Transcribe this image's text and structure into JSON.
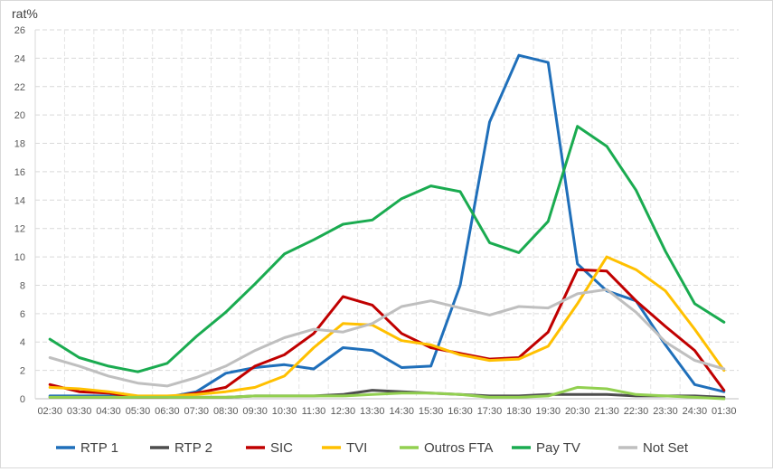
{
  "chart_data": {
    "type": "line",
    "ylabel": "rat%",
    "xlabel": "",
    "ylim": [
      0,
      26
    ],
    "yticks": [
      "0",
      "2",
      "4",
      "6",
      "8",
      "10",
      "12",
      "14",
      "16",
      "18",
      "20",
      "22",
      "24",
      "26"
    ],
    "grid": "horizontal dashed",
    "legend_position": "bottom",
    "categories": [
      "02:30",
      "03:30",
      "04:30",
      "05:30",
      "06:30",
      "07:30",
      "08:30",
      "09:30",
      "10:30",
      "11:30",
      "12:30",
      "13:30",
      "14:30",
      "15:30",
      "16:30",
      "17:30",
      "18:30",
      "19:30",
      "20:30",
      "21:30",
      "22:30",
      "23:30",
      "24:30",
      "01:30"
    ],
    "series": [
      {
        "name": "RTP 1",
        "color": "#1f6fba",
        "values": [
          0.2,
          0.2,
          0.2,
          0.1,
          0.1,
          0.5,
          1.8,
          2.2,
          2.4,
          2.1,
          3.6,
          3.4,
          2.2,
          2.3,
          8.0,
          19.5,
          24.2,
          23.7,
          9.5,
          7.6,
          6.9,
          3.8,
          1.0,
          0.5
        ]
      },
      {
        "name": "RTP 2",
        "color": "#4d4d4d",
        "values": [
          0.1,
          0.1,
          0.1,
          0.1,
          0.1,
          0.1,
          0.1,
          0.2,
          0.2,
          0.2,
          0.3,
          0.6,
          0.5,
          0.4,
          0.3,
          0.2,
          0.2,
          0.3,
          0.3,
          0.3,
          0.2,
          0.2,
          0.2,
          0.1
        ]
      },
      {
        "name": "SIC",
        "color": "#c00000",
        "values": [
          1.0,
          0.5,
          0.4,
          0.1,
          0.1,
          0.4,
          0.8,
          2.3,
          3.1,
          4.6,
          7.2,
          6.6,
          4.6,
          3.6,
          3.2,
          2.8,
          2.9,
          4.7,
          9.1,
          9.0,
          6.9,
          5.1,
          3.4,
          0.6
        ]
      },
      {
        "name": "TVI",
        "color": "#ffc000",
        "values": [
          0.8,
          0.7,
          0.5,
          0.2,
          0.2,
          0.3,
          0.5,
          0.8,
          1.6,
          3.6,
          5.3,
          5.2,
          4.1,
          3.8,
          3.1,
          2.7,
          2.8,
          3.7,
          6.7,
          10.0,
          9.1,
          7.6,
          4.9,
          2.0
        ]
      },
      {
        "name": "Outros FTA",
        "color": "#92d050",
        "values": [
          0.1,
          0.1,
          0.1,
          0.1,
          0.1,
          0.1,
          0.1,
          0.2,
          0.2,
          0.2,
          0.2,
          0.3,
          0.4,
          0.4,
          0.3,
          0.1,
          0.1,
          0.2,
          0.8,
          0.7,
          0.3,
          0.2,
          0.1,
          0.0
        ]
      },
      {
        "name": "Pay TV",
        "color": "#1aab50",
        "values": [
          4.2,
          2.9,
          2.3,
          1.9,
          2.5,
          4.4,
          6.1,
          8.1,
          10.2,
          11.2,
          12.3,
          12.6,
          14.1,
          15.0,
          14.6,
          11.0,
          10.3,
          12.5,
          19.2,
          17.8,
          14.7,
          10.4,
          6.7,
          5.4
        ]
      },
      {
        "name": "Not Set",
        "color": "#bfbfbf",
        "values": [
          2.9,
          2.3,
          1.6,
          1.1,
          0.9,
          1.5,
          2.3,
          3.4,
          4.3,
          4.9,
          4.7,
          5.3,
          6.5,
          6.9,
          6.4,
          5.9,
          6.5,
          6.4,
          7.4,
          7.7,
          6.1,
          4.0,
          2.7,
          2.1
        ]
      }
    ]
  }
}
